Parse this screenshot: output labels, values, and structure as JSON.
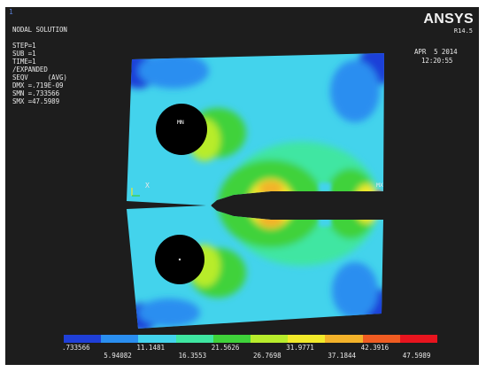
{
  "window": {
    "number": "1",
    "logo": "ANSYS",
    "version": "R14.5"
  },
  "info": {
    "title": "NODAL SOLUTION",
    "lines": [
      "STEP=1",
      "SUB =1",
      "TIME=1",
      "/EXPANDED",
      "SEQV     (AVG)",
      "DMX =.719E-09",
      "SMN =.733566",
      "SMX =47.5989"
    ]
  },
  "date": {
    "date": "APR  5 2014",
    "time": "12:20:55"
  },
  "markers": {
    "mn": "MN",
    "mx": "MX",
    "x_left": "X",
    "x_right": "X"
  },
  "legend": {
    "colors": [
      "#1f3fd8",
      "#2a8ef0",
      "#43d3ec",
      "#3fe6a2",
      "#3fd23a",
      "#b8ec2c",
      "#f2ea2a",
      "#f3b22a",
      "#f05c22",
      "#e8141e"
    ],
    "top_values": [
      ".733566",
      "11.1481",
      "21.5626",
      "31.9771",
      "42.3916"
    ],
    "bottom_values": [
      "5.94082",
      "16.3553",
      "26.7698",
      "37.1844",
      "47.5989"
    ]
  }
}
